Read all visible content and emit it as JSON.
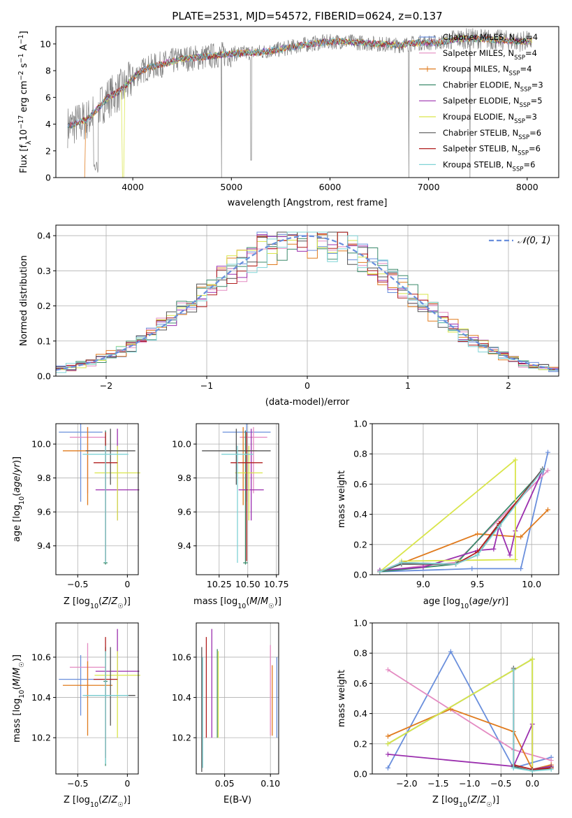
{
  "colors": {
    "Chabrier MILES": "#6a8fdc",
    "Salpeter MILES": "#e48bc2",
    "Kroupa MILES": "#e07b1e",
    "Chabrier ELODIE": "#3b8a6b",
    "Salpeter ELODIE": "#9b2fae",
    "Kroupa ELODIE": "#d9e54a",
    "Chabrier STELIB": "#555555",
    "Salpeter STELIB": "#b01e1e",
    "Kroupa STELIB": "#7fd3d6",
    "data": "#808080",
    "normal": "#6a8fdc"
  },
  "chart_data": [
    {
      "id": "spectrum",
      "type": "line",
      "title": "PLATE=2531, MJD=54572, FIBERID=0624, z=0.137",
      "xlabel": "wavelength [Angstrom, rest frame]",
      "ylabel": "Flux [fλ10⁻¹⁷ erg cm⁻² s⁻¹ A⁻¹]",
      "xlim": [
        3220,
        8320
      ],
      "ylim": [
        0,
        11.3
      ],
      "xticks": [
        4000,
        5000,
        6000,
        7000,
        8000
      ],
      "yticks": [
        0,
        2,
        4,
        6,
        8,
        10
      ],
      "legend_position": "right",
      "legend": [
        {
          "label": "Chabrier MILES, N",
          "sub": "SSP",
          "suffix": "=4",
          "key": "Chabrier MILES"
        },
        {
          "label": "Salpeter MILES, N",
          "sub": "SSP",
          "suffix": "=4",
          "key": "Salpeter MILES"
        },
        {
          "label": "Kroupa MILES, N",
          "sub": "SSP",
          "suffix": "=4",
          "key": "Kroupa MILES"
        },
        {
          "label": "Chabrier ELODIE, N",
          "sub": "SSP",
          "suffix": "=3",
          "key": "Chabrier ELODIE"
        },
        {
          "label": "Salpeter ELODIE, N",
          "sub": "SSP",
          "suffix": "=5",
          "key": "Salpeter ELODIE"
        },
        {
          "label": "Kroupa ELODIE, N",
          "sub": "SSP",
          "suffix": "=3",
          "key": "Kroupa ELODIE"
        },
        {
          "label": "Chabrier STELIB, N",
          "sub": "SSP",
          "suffix": "=6",
          "key": "Chabrier STELIB"
        },
        {
          "label": "Salpeter STELIB, N",
          "sub": "SSP",
          "suffix": "=6",
          "key": "Salpeter STELIB"
        },
        {
          "label": "Kroupa STELIB, N",
          "sub": "SSP",
          "suffix": "=6",
          "key": "Kroupa STELIB"
        }
      ],
      "continuum": [
        [
          3340,
          3.8
        ],
        [
          3450,
          4.1
        ],
        [
          3550,
          4.4
        ],
        [
          3650,
          5.2
        ],
        [
          3750,
          6.0
        ],
        [
          3850,
          6.4
        ],
        [
          3950,
          7.0
        ],
        [
          4050,
          7.8
        ],
        [
          4150,
          8.2
        ],
        [
          4300,
          8.5
        ],
        [
          4500,
          8.9
        ],
        [
          4700,
          9.0
        ],
        [
          4900,
          9.2
        ],
        [
          5100,
          9.3
        ],
        [
          5300,
          9.4
        ],
        [
          5500,
          9.6
        ],
        [
          5700,
          9.9
        ],
        [
          5900,
          10.1
        ],
        [
          6100,
          10.2
        ],
        [
          6300,
          10.1
        ],
        [
          6500,
          10.0
        ],
        [
          6700,
          9.9
        ],
        [
          6900,
          10.1
        ],
        [
          7100,
          10.1
        ],
        [
          7300,
          10.4
        ],
        [
          7500,
          10.4
        ],
        [
          7700,
          10.3
        ],
        [
          7900,
          10.2
        ],
        [
          8050,
          10.2
        ]
      ]
    },
    {
      "id": "residuals",
      "type": "histogram",
      "xlabel": "(data-model)/error",
      "ylabel": "Normed distribution",
      "xlim": [
        -2.5,
        2.5
      ],
      "ylim": [
        0,
        0.43
      ],
      "xticks": [
        -2,
        -1,
        0,
        1,
        2
      ],
      "yticks": [
        0.0,
        0.1,
        0.2,
        0.3,
        0.4
      ],
      "legend_position": "upper right",
      "legend_label": "𝒩(0, 1)",
      "bin_width": 0.1
    },
    {
      "id": "age_vs_Z",
      "type": "errorbar",
      "xlabel": "Z [log10(Z/Z☉)]",
      "ylabel": "age  [log10(age/yr)]",
      "xlim": [
        -0.72,
        0.11
      ],
      "ylim": [
        9.23,
        10.12
      ],
      "xticks": [
        -0.5,
        0.0
      ],
      "yticks": [
        9.4,
        9.6,
        9.8,
        10.0
      ],
      "points": [
        {
          "key": "Chabrier MILES",
          "x": -0.47,
          "xe": 0.22,
          "y": 10.07,
          "ye": [
            0.41,
            0.05
          ]
        },
        {
          "key": "Salpeter MILES",
          "x": -0.4,
          "xe": 0.18,
          "y": 10.04,
          "ye": [
            0.33,
            0.06
          ]
        },
        {
          "key": "Kroupa MILES",
          "x": -0.4,
          "xe": 0.25,
          "y": 9.96,
          "ye": [
            0.32,
            0.14
          ]
        },
        {
          "key": "Chabrier ELODIE",
          "x": -0.22,
          "xe": 0.02,
          "y": 9.3,
          "ye": [
            0.01,
            0.78
          ]
        },
        {
          "key": "Salpeter ELODIE",
          "x": -0.1,
          "xe": 0.22,
          "y": 9.73,
          "ye": [
            0.18,
            0.36
          ]
        },
        {
          "key": "Kroupa ELODIE",
          "x": -0.1,
          "xe": 0.23,
          "y": 9.83,
          "ye": [
            0.28,
            0.16
          ]
        },
        {
          "key": "Chabrier STELIB",
          "x": -0.17,
          "xe": 0.25,
          "y": 9.96,
          "ye": [
            0.2,
            0.13
          ]
        },
        {
          "key": "Salpeter STELIB",
          "x": -0.22,
          "xe": 0.12,
          "y": 9.89,
          "ye": [
            0.58,
            0.18
          ]
        },
        {
          "key": "Kroupa STELIB",
          "x": -0.22,
          "xe": 0.23,
          "y": 9.94,
          "ye": [
            0.64,
            0.05
          ]
        }
      ]
    },
    {
      "id": "age_vs_mass",
      "type": "errorbar",
      "xlabel": "mass [log10(M/M☉)]",
      "ylabel": "",
      "xlim": [
        10.05,
        10.77
      ],
      "ylim": [
        9.23,
        10.12
      ],
      "xticks": [
        10.25,
        10.5,
        10.75
      ],
      "xticklabels": [
        "10.25",
        "10.50",
        "10.75"
      ],
      "yticks": [
        9.4,
        9.6,
        9.8,
        10.0
      ],
      "points": [
        {
          "key": "Chabrier MILES",
          "x": 10.49,
          "xe": 0.21,
          "y": 10.07,
          "ye": [
            0.41,
            0.05
          ]
        },
        {
          "key": "Salpeter MILES",
          "x": 10.55,
          "xe": 0.12,
          "y": 10.04,
          "ye": [
            0.33,
            0.06
          ]
        },
        {
          "key": "Kroupa MILES",
          "x": 10.46,
          "xe": 0.12,
          "y": 9.96,
          "ye": [
            0.32,
            0.14
          ]
        },
        {
          "key": "Chabrier ELODIE",
          "x": 10.48,
          "xe": 0.02,
          "y": 9.3,
          "ye": [
            0.01,
            0.78
          ]
        },
        {
          "key": "Salpeter ELODIE",
          "x": 10.53,
          "xe": 0.11,
          "y": 9.73,
          "ye": [
            0.18,
            0.36
          ]
        },
        {
          "key": "Kroupa ELODIE",
          "x": 10.51,
          "xe": 0.12,
          "y": 9.83,
          "ye": [
            0.28,
            0.16
          ]
        },
        {
          "key": "Chabrier STELIB",
          "x": 10.4,
          "xe": 0.3,
          "y": 9.96,
          "ye": [
            0.2,
            0.13
          ]
        },
        {
          "key": "Salpeter STELIB",
          "x": 10.49,
          "xe": 0.14,
          "y": 9.89,
          "ye": [
            0.58,
            0.18
          ]
        },
        {
          "key": "Kroupa STELIB",
          "x": 10.41,
          "xe": 0.14,
          "y": 9.94,
          "ye": [
            0.64,
            0.05
          ]
        }
      ]
    },
    {
      "id": "weight_vs_age",
      "type": "line",
      "xlabel": "age  [log10(age/yr)]",
      "ylabel": "mass weight",
      "xlim": [
        8.53,
        10.25
      ],
      "ylim": [
        0,
        1.0
      ],
      "xticks": [
        9.0,
        9.5,
        10.0
      ],
      "yticks": [
        0.0,
        0.2,
        0.4,
        0.6,
        0.8,
        1.0
      ],
      "series": [
        {
          "key": "Chabrier MILES",
          "x": [
            8.6,
            9.45,
            9.9,
            10.15
          ],
          "y": [
            0.02,
            0.04,
            0.04,
            0.81
          ]
        },
        {
          "key": "Salpeter MILES",
          "x": [
            8.6,
            9.0,
            9.3,
            10.15
          ],
          "y": [
            0.02,
            0.06,
            0.08,
            0.69
          ]
        },
        {
          "key": "Kroupa MILES",
          "x": [
            8.6,
            9.5,
            9.9,
            10.15
          ],
          "y": [
            0.02,
            0.27,
            0.25,
            0.43
          ]
        },
        {
          "key": "Chabrier ELODIE",
          "x": [
            8.6,
            9.3,
            10.1
          ],
          "y": [
            0.02,
            0.07,
            0.69
          ]
        },
        {
          "key": "Salpeter ELODIE",
          "x": [
            8.6,
            9.0,
            9.5,
            9.65,
            9.7,
            9.8,
            9.85,
            10.1
          ],
          "y": [
            0.03,
            0.05,
            0.16,
            0.17,
            0.32,
            0.13,
            0.29,
            0.69
          ]
        },
        {
          "key": "Kroupa ELODIE",
          "x": [
            8.6,
            9.85,
            9.85,
            8.8
          ],
          "y": [
            0.02,
            0.76,
            0.1,
            0.09
          ]
        },
        {
          "key": "Chabrier STELIB",
          "x": [
            8.6,
            8.8,
            9.3,
            9.5,
            9.7,
            10.1
          ],
          "y": [
            0.02,
            0.07,
            0.07,
            0.13,
            0.33,
            0.7
          ]
        },
        {
          "key": "Salpeter STELIB",
          "x": [
            8.6,
            8.8,
            9.3,
            9.5,
            9.7,
            10.1
          ],
          "y": [
            0.02,
            0.08,
            0.07,
            0.15,
            0.34,
            0.69
          ]
        },
        {
          "key": "Kroupa STELIB",
          "x": [
            8.6,
            8.8,
            9.3,
            9.5,
            9.7,
            10.1
          ],
          "y": [
            0.02,
            0.08,
            0.07,
            0.13,
            0.32,
            0.69
          ]
        }
      ]
    },
    {
      "id": "mass_vs_Z",
      "type": "errorbar",
      "xlabel": "Z [log10(Z/Z☉)]",
      "ylabel": "mass [log10(M/M☉)]",
      "xlim": [
        -0.72,
        0.11
      ],
      "ylim": [
        10.02,
        10.77
      ],
      "xticks": [
        -0.5,
        0.0
      ],
      "yticks": [
        10.2,
        10.4,
        10.6
      ],
      "points": [
        {
          "key": "Chabrier MILES",
          "x": -0.47,
          "xe": 0.22,
          "y": 10.49,
          "ye": [
            0.18,
            0.12
          ]
        },
        {
          "key": "Salpeter MILES",
          "x": -0.4,
          "xe": 0.18,
          "y": 10.55,
          "ye": [
            0.15,
            0.12
          ]
        },
        {
          "key": "Kroupa MILES",
          "x": -0.4,
          "xe": 0.25,
          "y": 10.46,
          "ye": [
            0.25,
            0.12
          ]
        },
        {
          "key": "Chabrier ELODIE",
          "x": -0.22,
          "xe": 0.02,
          "y": 10.48,
          "ye": [
            0.42,
            0.17
          ]
        },
        {
          "key": "Salpeter ELODIE",
          "x": -0.1,
          "xe": 0.22,
          "y": 10.53,
          "ye": [
            0.11,
            0.21
          ]
        },
        {
          "key": "Kroupa ELODIE",
          "x": -0.1,
          "xe": 0.23,
          "y": 10.51,
          "ye": [
            0.31,
            0.12
          ]
        },
        {
          "key": "Chabrier STELIB",
          "x": -0.17,
          "xe": 0.25,
          "y": 10.41,
          "ye": [
            0.15,
            0.24
          ]
        },
        {
          "key": "Salpeter STELIB",
          "x": -0.22,
          "xe": 0.12,
          "y": 10.49,
          "ye": [
            0.39,
            0.21
          ]
        },
        {
          "key": "Kroupa STELIB",
          "x": -0.22,
          "xe": 0.23,
          "y": 10.41,
          "ye": [
            0.34,
            0.22
          ]
        }
      ]
    },
    {
      "id": "mass_vs_ebv",
      "type": "errorbar",
      "xlabel": "E(B-V)",
      "ylabel": "",
      "xlim": [
        0.019,
        0.109
      ],
      "ylim": [
        10.02,
        10.77
      ],
      "xticks": [
        0.05,
        0.1
      ],
      "xticklabels": [
        "0.05",
        "0.10"
      ],
      "yticks": [
        10.2,
        10.4,
        10.6
      ],
      "points": [
        {
          "key": "Chabrier MILES",
          "x": 0.107,
          "xe": 0,
          "y": 10.41,
          "ye": [
            0.21,
            0.19
          ]
        },
        {
          "key": "Salpeter MILES",
          "x": 0.1,
          "xe": 0,
          "y": 10.49,
          "ye": [
            0.28,
            0.17
          ]
        },
        {
          "key": "Kroupa MILES",
          "x": 0.102,
          "xe": 0,
          "y": 10.4,
          "ye": [
            0.19,
            0.16
          ]
        },
        {
          "key": "Chabrier ELODIE",
          "x": 0.042,
          "xe": 0,
          "y": 10.45,
          "ye": [
            0.25,
            0.19
          ]
        },
        {
          "key": "Salpeter ELODIE",
          "x": 0.036,
          "xe": 0,
          "y": 10.52,
          "ye": [
            0.32,
            0.22
          ]
        },
        {
          "key": "Kroupa ELODIE",
          "x": 0.043,
          "xe": 0,
          "y": 10.42,
          "ye": [
            0.22,
            0.21
          ]
        },
        {
          "key": "Chabrier STELIB",
          "x": 0.025,
          "xe": 0,
          "y": 10.3,
          "ye": [
            0.27,
            0.35
          ]
        },
        {
          "key": "Salpeter STELIB",
          "x": 0.03,
          "xe": 0,
          "y": 10.5,
          "ye": [
            0.3,
            0.2
          ]
        },
        {
          "key": "Kroupa STELIB",
          "x": 0.026,
          "xe": 0,
          "y": 10.3,
          "ye": [
            0.25,
            0.3
          ]
        }
      ]
    },
    {
      "id": "weight_vs_Z",
      "type": "line",
      "xlabel": "Z [log10(Z/Z☉)]",
      "ylabel": "mass weight",
      "xlim": [
        -2.55,
        0.42
      ],
      "ylim": [
        0,
        1.0
      ],
      "xticks": [
        -2.0,
        -1.5,
        -1.0,
        -0.5,
        0.0
      ],
      "yticks": [
        0.0,
        0.2,
        0.4,
        0.6,
        0.8,
        1.0
      ],
      "series": [
        {
          "key": "Chabrier MILES",
          "x": [
            -2.3,
            -1.3,
            -0.3,
            0.3
          ],
          "y": [
            0.04,
            0.81,
            0.04,
            0.11
          ]
        },
        {
          "key": "Salpeter MILES",
          "x": [
            -2.3,
            -0.3,
            0.3
          ],
          "y": [
            0.69,
            0.16,
            0.09
          ]
        },
        {
          "key": "Kroupa MILES",
          "x": [
            -2.3,
            -1.3,
            -0.3,
            0.0,
            0.3
          ],
          "y": [
            0.25,
            0.43,
            0.28,
            0.03,
            0.06
          ]
        },
        {
          "key": "Chabrier ELODIE",
          "x": [
            -2.3,
            0.0,
            0.0,
            0.3
          ],
          "y": [
            0.2,
            0.76,
            0.03,
            0.05
          ]
        },
        {
          "key": "Salpeter ELODIE",
          "x": [
            -2.3,
            -0.3,
            0.0,
            0.0,
            0.3
          ],
          "y": [
            0.13,
            0.05,
            0.33,
            0.03,
            0.05
          ]
        },
        {
          "key": "Kroupa ELODIE",
          "x": [
            -2.3,
            0.0,
            0.0,
            0.3
          ],
          "y": [
            0.2,
            0.76,
            0.02,
            0.04
          ]
        },
        {
          "key": "Chabrier STELIB",
          "x": [
            -0.3,
            -0.3,
            0.0,
            0.3
          ],
          "y": [
            0.7,
            0.05,
            0.02,
            0.04
          ]
        },
        {
          "key": "Salpeter STELIB",
          "x": [
            -0.3,
            -0.3,
            0.0,
            0.3
          ],
          "y": [
            0.69,
            0.06,
            0.03,
            0.04
          ]
        },
        {
          "key": "Kroupa STELIB",
          "x": [
            -0.3,
            -0.3,
            0.0,
            0.3
          ],
          "y": [
            0.69,
            0.04,
            0.02,
            0.03
          ]
        }
      ]
    }
  ]
}
